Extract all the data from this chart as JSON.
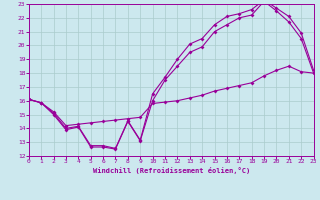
{
  "xlabel": "Windchill (Refroidissement éolien,°C)",
  "bg_color": "#cce8ee",
  "line_color": "#990099",
  "grid_color": "#aacccc",
  "xlim": [
    0,
    23
  ],
  "ylim": [
    12,
    23
  ],
  "xticks": [
    0,
    1,
    2,
    3,
    4,
    5,
    6,
    7,
    8,
    9,
    10,
    11,
    12,
    13,
    14,
    15,
    16,
    17,
    18,
    19,
    20,
    21,
    22,
    23
  ],
  "yticks": [
    12,
    13,
    14,
    15,
    16,
    17,
    18,
    19,
    20,
    21,
    22,
    23
  ],
  "curve1_x": [
    0,
    1,
    2,
    3,
    4,
    5,
    6,
    7,
    8,
    9,
    10,
    11,
    12,
    13,
    14,
    15,
    16,
    17,
    18,
    19,
    20,
    21,
    22,
    23
  ],
  "curve1_y": [
    16.1,
    15.85,
    15.0,
    13.9,
    14.1,
    12.65,
    12.65,
    12.5,
    14.5,
    13.1,
    16.0,
    17.5,
    18.5,
    19.5,
    19.9,
    21.0,
    21.5,
    22.0,
    22.2,
    23.2,
    22.5,
    21.7,
    20.5,
    18.0
  ],
  "curve2_x": [
    0,
    1,
    2,
    3,
    4,
    5,
    6,
    7,
    8,
    9,
    10,
    11,
    12,
    13,
    14,
    15,
    16,
    17,
    18,
    19,
    20,
    21,
    22,
    23
  ],
  "curve2_y": [
    16.1,
    15.85,
    15.1,
    14.0,
    14.15,
    12.75,
    12.75,
    12.55,
    14.55,
    13.15,
    16.5,
    17.7,
    19.0,
    20.1,
    20.5,
    21.5,
    22.1,
    22.3,
    22.6,
    23.3,
    22.7,
    22.1,
    20.9,
    18.2
  ],
  "curve3_x": [
    0,
    1,
    2,
    3,
    4,
    5,
    6,
    7,
    8,
    9,
    10,
    11,
    12,
    13,
    14,
    15,
    16,
    17,
    18,
    19,
    20,
    21,
    22,
    23
  ],
  "curve3_y": [
    16.1,
    15.85,
    15.2,
    14.2,
    14.3,
    14.4,
    14.5,
    14.6,
    14.7,
    14.8,
    15.8,
    15.9,
    16.0,
    16.2,
    16.4,
    16.7,
    16.9,
    17.1,
    17.3,
    17.8,
    18.2,
    18.5,
    18.1,
    18.0
  ],
  "marker": "D",
  "markersize": 2,
  "linewidth": 0.8
}
